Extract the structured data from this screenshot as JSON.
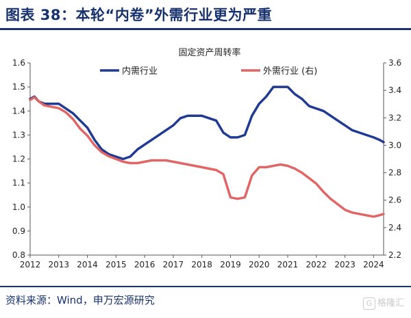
{
  "header": {
    "title": "图表 38：本轮“内卷”外需行业更为严重"
  },
  "footer": {
    "source": "资料来源：Wind，申万宏源研究",
    "watermark": "格隆汇",
    "watermark_mark": "G"
  },
  "colors": {
    "brand": "#17326e",
    "series_left": "#1f3a93",
    "series_right": "#e06666"
  },
  "chart_data": {
    "type": "line",
    "title": "固定资产周转率",
    "legend_placement": "top",
    "grid": false,
    "x_ticks": [
      "2012",
      "2013",
      "2014",
      "2015",
      "2016",
      "2017",
      "2018",
      "2019",
      "2020",
      "2021",
      "2022",
      "2023",
      "2024"
    ],
    "xlim": [
      2012.0,
      2024.35
    ],
    "y_left": {
      "lim": [
        0.8,
        1.6
      ],
      "ticks": [
        "0.8",
        "0.9",
        "1.0",
        "1.1",
        "1.2",
        "1.3",
        "1.4",
        "1.5",
        "1.6"
      ]
    },
    "y_right": {
      "lim": [
        2.2,
        3.6
      ],
      "ticks": [
        "2.2",
        "2.4",
        "2.6",
        "2.8",
        "3.0",
        "3.2",
        "3.4",
        "3.6"
      ]
    },
    "series": [
      {
        "name": "内需行业",
        "axis": "left",
        "color": "#1f3a93",
        "x": [
          2012.0,
          2012.15,
          2012.3,
          2012.5,
          2012.75,
          2013.0,
          2013.25,
          2013.5,
          2013.75,
          2014.0,
          2014.25,
          2014.5,
          2014.75,
          2015.0,
          2015.25,
          2015.5,
          2015.75,
          2016.0,
          2016.25,
          2016.5,
          2016.75,
          2017.0,
          2017.25,
          2017.5,
          2017.75,
          2018.0,
          2018.25,
          2018.5,
          2018.75,
          2019.0,
          2019.25,
          2019.5,
          2019.75,
          2020.0,
          2020.25,
          2020.5,
          2020.75,
          2021.0,
          2021.25,
          2021.5,
          2021.75,
          2022.0,
          2022.25,
          2022.5,
          2022.75,
          2023.0,
          2023.25,
          2023.5,
          2023.75,
          2024.0,
          2024.2,
          2024.35
        ],
        "y": [
          1.45,
          1.46,
          1.44,
          1.43,
          1.43,
          1.43,
          1.41,
          1.39,
          1.36,
          1.33,
          1.28,
          1.24,
          1.22,
          1.21,
          1.2,
          1.21,
          1.24,
          1.26,
          1.28,
          1.3,
          1.32,
          1.34,
          1.37,
          1.38,
          1.38,
          1.38,
          1.37,
          1.36,
          1.31,
          1.29,
          1.29,
          1.3,
          1.38,
          1.43,
          1.46,
          1.5,
          1.5,
          1.5,
          1.47,
          1.45,
          1.42,
          1.41,
          1.4,
          1.38,
          1.36,
          1.34,
          1.32,
          1.31,
          1.3,
          1.29,
          1.28,
          1.27
        ]
      },
      {
        "name": "外需行业 (右)",
        "axis": "right",
        "color": "#e06666",
        "x": [
          2012.0,
          2012.15,
          2012.3,
          2012.5,
          2012.75,
          2013.0,
          2013.25,
          2013.5,
          2013.75,
          2014.0,
          2014.25,
          2014.5,
          2014.75,
          2015.0,
          2015.25,
          2015.5,
          2015.75,
          2016.0,
          2016.25,
          2016.5,
          2016.75,
          2017.0,
          2017.25,
          2017.5,
          2017.75,
          2018.0,
          2018.25,
          2018.5,
          2018.75,
          2019.0,
          2019.25,
          2019.5,
          2019.75,
          2020.0,
          2020.25,
          2020.5,
          2020.75,
          2021.0,
          2021.25,
          2021.5,
          2021.75,
          2022.0,
          2022.25,
          2022.5,
          2022.75,
          2023.0,
          2023.25,
          2023.5,
          2023.75,
          2024.0,
          2024.2,
          2024.35
        ],
        "y": [
          3.33,
          3.35,
          3.32,
          3.29,
          3.28,
          3.27,
          3.24,
          3.19,
          3.12,
          3.07,
          3.0,
          2.95,
          2.92,
          2.9,
          2.88,
          2.87,
          2.87,
          2.88,
          2.89,
          2.89,
          2.89,
          2.88,
          2.87,
          2.86,
          2.85,
          2.84,
          2.83,
          2.82,
          2.79,
          2.62,
          2.61,
          2.62,
          2.78,
          2.84,
          2.84,
          2.85,
          2.86,
          2.85,
          2.83,
          2.8,
          2.76,
          2.72,
          2.66,
          2.61,
          2.57,
          2.53,
          2.51,
          2.5,
          2.49,
          2.48,
          2.49,
          2.5
        ]
      }
    ]
  }
}
